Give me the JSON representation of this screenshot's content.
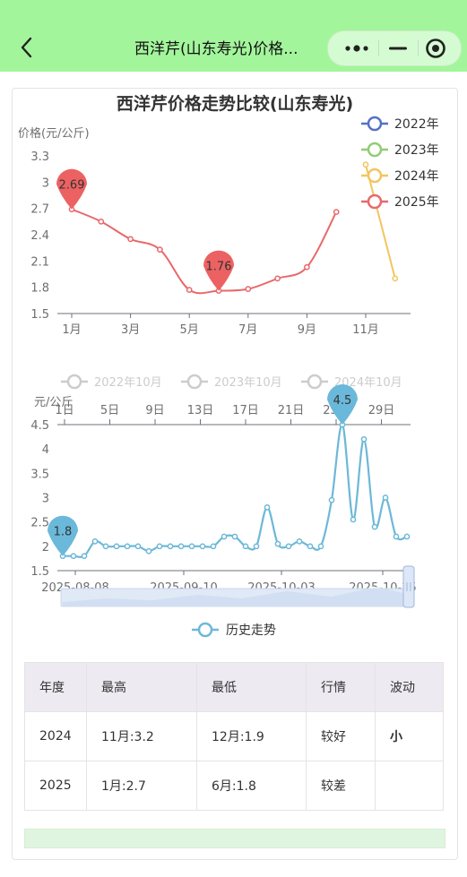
{
  "header": {
    "title": "西洋芹(山东寿光)价格...",
    "back_icon": "chevron-left-icon",
    "menu_icon": "more-dots-icon",
    "minimize_icon": "minus-icon",
    "close_icon": "target-circle-icon"
  },
  "chart_data": [
    {
      "type": "line",
      "title": "西洋芹价格走势比较(山东寿光)",
      "ylabel": "价格(元/公斤)",
      "ylim": [
        1.5,
        3.3
      ],
      "yticks": [
        "3.3",
        "3",
        "2.7",
        "2.4",
        "2.1",
        "1.8",
        "1.5"
      ],
      "xticks": [
        "1月",
        "3月",
        "5月",
        "7月",
        "9月",
        "11月"
      ],
      "legend": [
        "2022年",
        "2023年",
        "2024年",
        "2025年"
      ],
      "series": [
        {
          "name": "2024年",
          "color": "#f2c55e",
          "x": [
            11,
            12
          ],
          "values": [
            3.2,
            1.9
          ]
        },
        {
          "name": "2025年",
          "color": "#e8686a",
          "x": [
            1,
            2,
            3,
            4,
            5,
            6,
            7,
            8,
            9,
            10
          ],
          "values": [
            2.69,
            2.55,
            2.35,
            2.23,
            1.77,
            1.76,
            1.78,
            1.9,
            2.03,
            2.66
          ]
        }
      ],
      "annotations": [
        {
          "x": 1,
          "label": "2.69"
        },
        {
          "x": 6,
          "label": "1.76"
        }
      ]
    },
    {
      "type": "line",
      "ylabel": "元/公斤",
      "ylim": [
        1.5,
        4.5
      ],
      "yticks": [
        "4.5",
        "4",
        "3.5",
        "3",
        "2.5",
        "2",
        "1.5"
      ],
      "top_xticks": [
        "1日",
        "5日",
        "9日",
        "13日",
        "17日",
        "21日",
        "25日",
        "29日"
      ],
      "legend_top": [
        "2022年10月",
        "2023年10月",
        "2024年10月"
      ],
      "xticks": [
        "2025-08-08",
        "2025-09-10",
        "2025-10-03",
        "2025-10-25"
      ],
      "legend": [
        "历史走势"
      ],
      "series": [
        {
          "name": "历史走势",
          "color": "#6db8d8",
          "values": [
            1.8,
            1.8,
            1.8,
            2.1,
            2.0,
            2.0,
            2.0,
            2.0,
            1.9,
            2.0,
            2.0,
            2.0,
            2.0,
            2.0,
            2.0,
            2.2,
            2.2,
            2.0,
            2.0,
            2.8,
            2.05,
            2.0,
            2.1,
            2.0,
            2.0,
            2.95,
            4.5,
            2.55,
            4.2,
            2.4,
            3.0,
            2.2,
            2.2
          ]
        }
      ],
      "annotations": [
        {
          "x": 0,
          "label": "1.8"
        },
        {
          "x": 26,
          "label": "4.5"
        }
      ]
    }
  ],
  "table": {
    "headers": [
      "年度",
      "最高",
      "最低",
      "行情",
      "波动"
    ],
    "rows": [
      [
        "2024",
        "11月:3.2",
        "12月:1.9",
        "较好",
        "小"
      ],
      [
        "2025",
        "1月:2.7",
        "6月:1.8",
        "较差",
        ""
      ]
    ]
  },
  "colors": {
    "header_bg": "#a3f59b",
    "series_2022": "#5470c6",
    "series_2023": "#91cc75",
    "series_2024": "#f2c55e",
    "series_2025": "#e8686a",
    "history": "#6db8d8"
  }
}
